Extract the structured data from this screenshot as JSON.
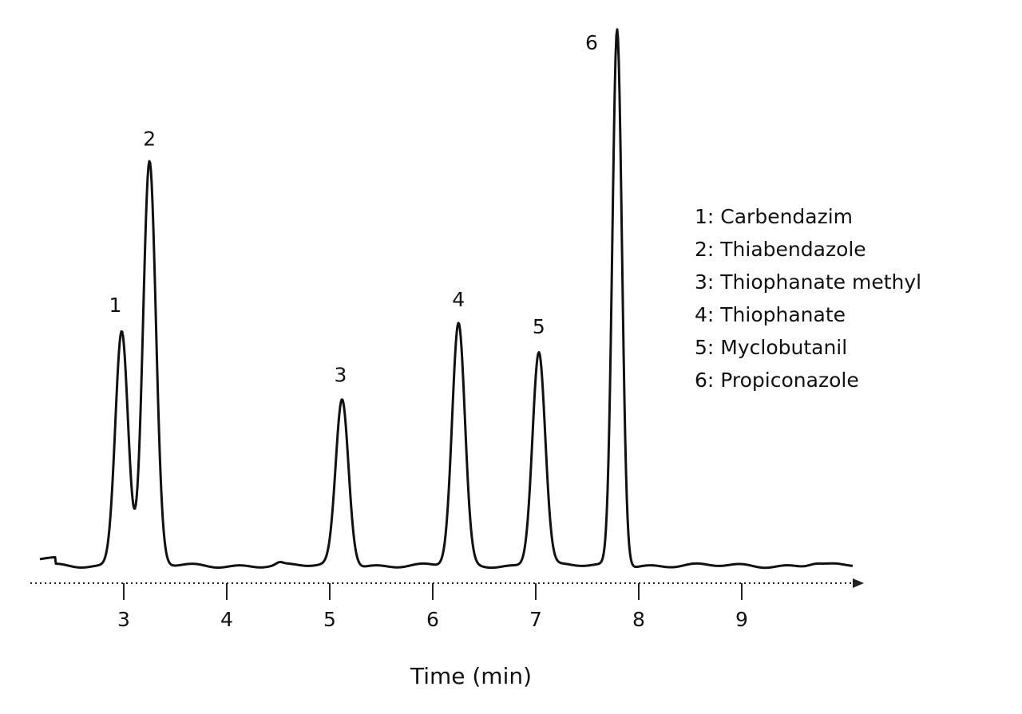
{
  "chart_data": {
    "type": "line",
    "title": "",
    "xlabel": "Time (min)",
    "ylabel": "",
    "xlim": [
      2.2,
      10.2
    ],
    "ylim": [
      0,
      100
    ],
    "xticks": [
      3,
      4,
      5,
      6,
      7,
      8,
      9
    ],
    "grid": false,
    "legend_position": "right",
    "peaks": [
      {
        "label": "1",
        "time": 2.98,
        "height": 44
      },
      {
        "label": "2",
        "time": 3.25,
        "height": 75
      },
      {
        "label": "3",
        "time": 5.12,
        "height": 31
      },
      {
        "label": "4",
        "time": 6.25,
        "height": 45
      },
      {
        "label": "5",
        "time": 7.03,
        "height": 40
      },
      {
        "label": "6",
        "time": 7.79,
        "height": 100
      }
    ],
    "legend": [
      "1:  Carbendazim",
      "2:  Thiabendazole",
      "3:  Thiophanate methyl",
      "4:  Thiophanate",
      "5:  Myclobutanil",
      "6:  Propiconazole"
    ]
  }
}
